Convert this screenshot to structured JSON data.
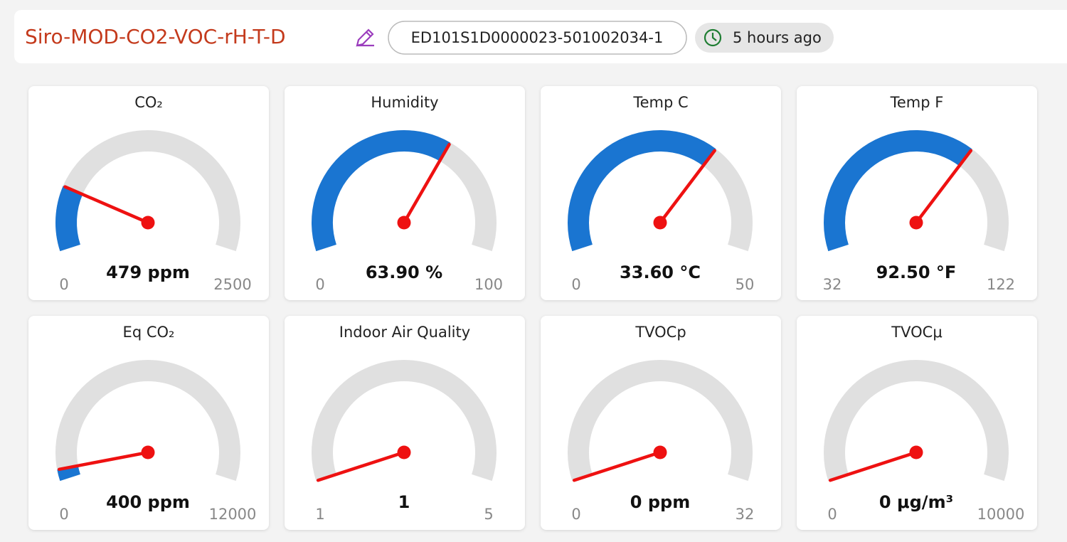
{
  "header": {
    "title": "Siro-MOD-CO2-VOC-rH-T-D",
    "device_id": "ED101S1D0000023-501002034-1",
    "last_seen": "5 hours ago"
  },
  "gauges": [
    {
      "title": "CO₂",
      "value": 479,
      "value_label": "479 ppm",
      "min": 0,
      "max": 2500
    },
    {
      "title": "Humidity",
      "value": 63.9,
      "value_label": "63.90 %",
      "min": 0,
      "max": 100
    },
    {
      "title": "Temp C",
      "value": 33.6,
      "value_label": "33.60 °C",
      "min": 0,
      "max": 50
    },
    {
      "title": "Temp F",
      "value": 92.5,
      "value_label": "92.50 °F",
      "min": 32,
      "max": 122
    },
    {
      "title": "Eq CO₂",
      "value": 400,
      "value_label": "400 ppm",
      "min": 0,
      "max": 12000
    },
    {
      "title": "Indoor Air Quality",
      "value": 1,
      "min": 1,
      "max": 5
    },
    {
      "title": "TVOCp",
      "value": 0,
      "value_label": "0 ppm",
      "min": 0,
      "max": 32
    },
    {
      "title": "TVOCμ",
      "value": 0,
      "value_label": "0 μg/m³",
      "min": 0,
      "max": 10000
    }
  ]
}
